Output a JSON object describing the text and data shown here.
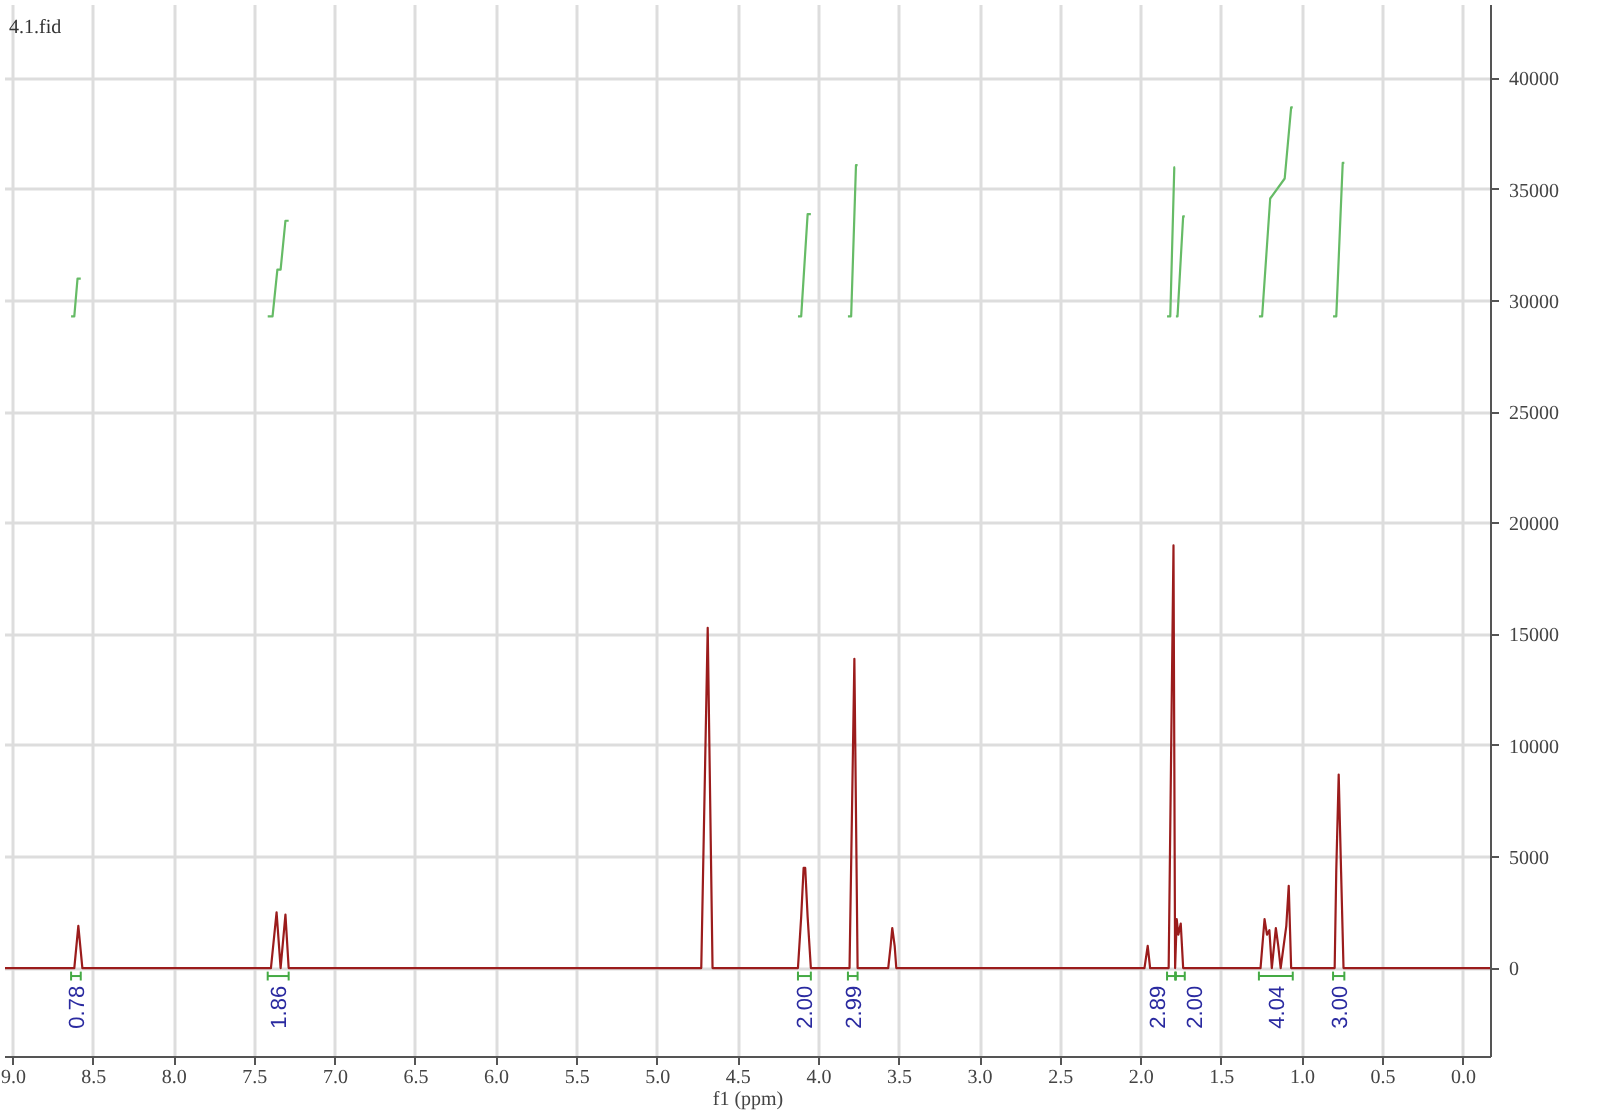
{
  "chart_data": {
    "type": "line",
    "title": "4.1.fid",
    "xlabel": "f1 (ppm)",
    "xlim": [
      9.05,
      -0.17
    ],
    "ylim": [
      -4000,
      43300
    ],
    "xticks": [
      {
        "value": 9,
        "label": "9.0"
      },
      {
        "value": 8.5,
        "label": "8.5"
      },
      {
        "value": 8,
        "label": "8.0"
      },
      {
        "value": 7.5,
        "label": "7.5"
      },
      {
        "value": 7,
        "label": "7.0"
      },
      {
        "value": 6.5,
        "label": "6.5"
      },
      {
        "value": 6,
        "label": "6.0"
      },
      {
        "value": 5.5,
        "label": "5.5"
      },
      {
        "value": 5,
        "label": "5.0"
      },
      {
        "value": 4.5,
        "label": "4.5"
      },
      {
        "value": 4,
        "label": "4.0"
      },
      {
        "value": 3.5,
        "label": "3.5"
      },
      {
        "value": 3,
        "label": "3.0"
      },
      {
        "value": 2.5,
        "label": "2.5"
      },
      {
        "value": 2,
        "label": "2.0"
      },
      {
        "value": 1.5,
        "label": "1.5"
      },
      {
        "value": 1,
        "label": "1.0"
      },
      {
        "value": 0.5,
        "label": "0.5"
      },
      {
        "value": 0,
        "label": "0.0"
      }
    ],
    "yticks": [
      0,
      5000,
      10000,
      15000,
      20000,
      25000,
      30000,
      35000,
      40000
    ],
    "grid": true,
    "marker": "none",
    "line_style": "solid",
    "series": [
      {
        "color": "#9b1c1c",
        "x": [
          9.05,
          8.62,
          8.595,
          8.57,
          7.4,
          7.365,
          7.34,
          7.31,
          7.29,
          4.73,
          4.69,
          4.66,
          4.13,
          4.11,
          4.095,
          4.085,
          4.07,
          4.05,
          3.81,
          3.78,
          3.76,
          3.57,
          3.555,
          3.545,
          3.53,
          3.52,
          1.98,
          1.96,
          1.945,
          1.83,
          1.8,
          1.79,
          1.78,
          1.77,
          1.755,
          1.74,
          1.26,
          1.235,
          1.22,
          1.205,
          1.19,
          1.165,
          1.15,
          1.135,
          1.1,
          1.085,
          1.07,
          0.8,
          0.79,
          0.775,
          0.76,
          0.745,
          -0.17
        ],
        "values": [
          0,
          0,
          1900,
          0,
          0,
          2500,
          0,
          2400,
          0,
          0,
          15300,
          0,
          0,
          2300,
          4500,
          4500,
          2300,
          0,
          0,
          13900,
          0,
          0,
          1000,
          1800,
          1000,
          0,
          0,
          1000,
          0,
          0,
          19000,
          0,
          2200,
          1500,
          2000,
          0,
          0,
          2200,
          1500,
          1700,
          0,
          1800,
          1000,
          0,
          1900,
          3700,
          0,
          0,
          4400,
          8700,
          4300,
          0,
          0
        ]
      },
      {
        "color": "#66bb66",
        "x": [
          8.64,
          8.62,
          8.6,
          8.58
        ],
        "values": [
          29300,
          29300,
          31000,
          31000
        ]
      },
      {
        "color": "#66bb66",
        "x": [
          7.42,
          7.39,
          7.36,
          7.34,
          7.31,
          7.29
        ],
        "values": [
          29300,
          29300,
          31400,
          31400,
          33600,
          33600
        ]
      },
      {
        "color": "#66bb66",
        "x": [
          4.13,
          4.11,
          4.07,
          4.05
        ],
        "values": [
          29300,
          29300,
          33900,
          33900
        ]
      },
      {
        "color": "#66bb66",
        "x": [
          3.82,
          3.8,
          3.77,
          3.76
        ],
        "values": [
          29300,
          29300,
          36100,
          36100
        ]
      },
      {
        "color": "#66bb66",
        "x": [
          1.84,
          1.82,
          1.795,
          1.79
        ],
        "values": [
          29300,
          29300,
          36000,
          36000
        ]
      },
      {
        "color": "#66bb66",
        "x": [
          1.785,
          1.775,
          1.74,
          1.73
        ],
        "values": [
          29300,
          29300,
          33800,
          33800
        ]
      },
      {
        "color": "#66bb66",
        "x": [
          1.27,
          1.25,
          1.2,
          1.11,
          1.07,
          1.06
        ],
        "values": [
          29300,
          29300,
          34600,
          35500,
          38700,
          38700
        ]
      },
      {
        "color": "#66bb66",
        "x": [
          0.81,
          0.79,
          0.75,
          0.74
        ],
        "values": [
          29300,
          29300,
          36200,
          36200
        ]
      }
    ],
    "annotations": [
      "0.78",
      "1.86",
      "2.00",
      "2.99",
      "2.89",
      "2.00",
      "4.04",
      "3.00"
    ]
  }
}
